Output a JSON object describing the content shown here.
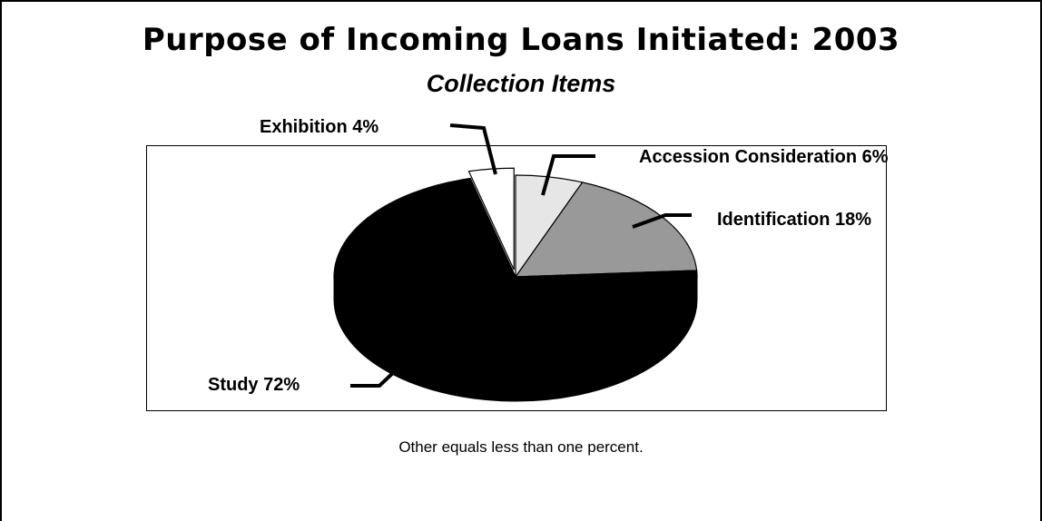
{
  "chart_data": {
    "type": "pie",
    "title": "Purpose of Incoming Loans Initiated: 2003",
    "subtitle": "Collection Items",
    "slices": [
      {
        "label": "Accession Consideration",
        "value": 6,
        "label_text": "Accession Consideration 6%",
        "color": "#e6e6e6"
      },
      {
        "label": "Identification",
        "value": 18,
        "label_text": "Identification 18%",
        "color": "#999999"
      },
      {
        "label": "Study",
        "value": 72,
        "label_text": "Study 72%",
        "color": "#000000"
      },
      {
        "label": "Exhibition",
        "value": 4,
        "label_text": "Exhibition 4%",
        "color": "#ffffff",
        "exploded": true
      }
    ],
    "footnote": "Other equals less than one percent."
  }
}
